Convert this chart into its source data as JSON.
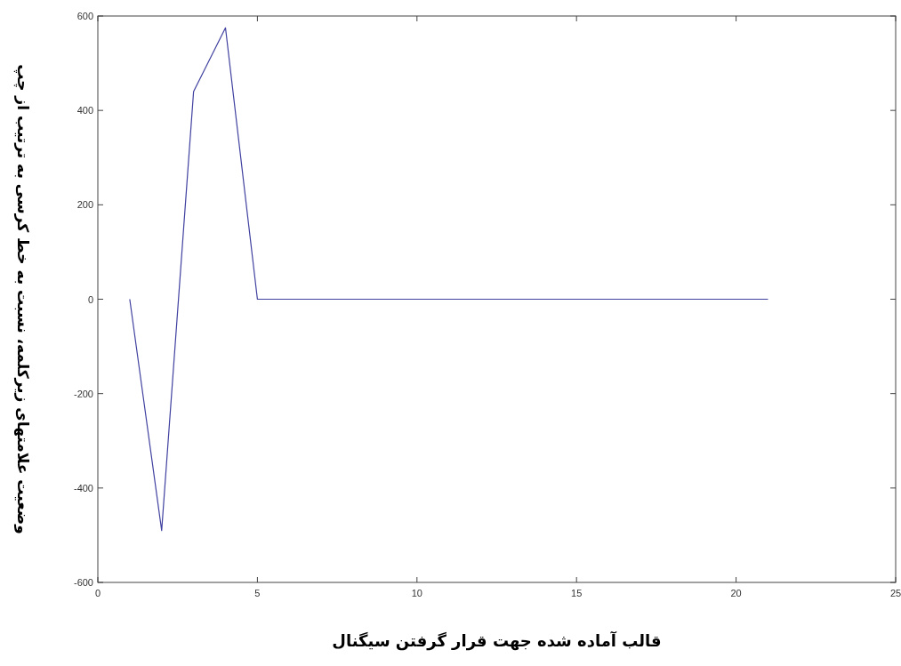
{
  "chart_data": {
    "type": "line",
    "xlabel": "قالب آماده شده جهت قرار گرفتن سیگنال",
    "ylabel": "وضعیت علامتهای زیرکلمه، نسبت به خط کرسی به ترتیب از چپ",
    "x": [
      1,
      2,
      3,
      4,
      5,
      6,
      7,
      8,
      9,
      10,
      11,
      12,
      13,
      14,
      15,
      16,
      17,
      18,
      19,
      20,
      21
    ],
    "values": [
      0,
      -490,
      440,
      575,
      0,
      0,
      0,
      0,
      0,
      0,
      0,
      0,
      0,
      0,
      0,
      0,
      0,
      0,
      0,
      0,
      0
    ],
    "color": "#4040a0",
    "xlim": [
      0,
      25
    ],
    "ylim": [
      -600,
      600
    ],
    "xticks": [
      0,
      5,
      10,
      15,
      20,
      25
    ],
    "yticks": [
      -600,
      -400,
      -200,
      0,
      200,
      400,
      600
    ]
  }
}
